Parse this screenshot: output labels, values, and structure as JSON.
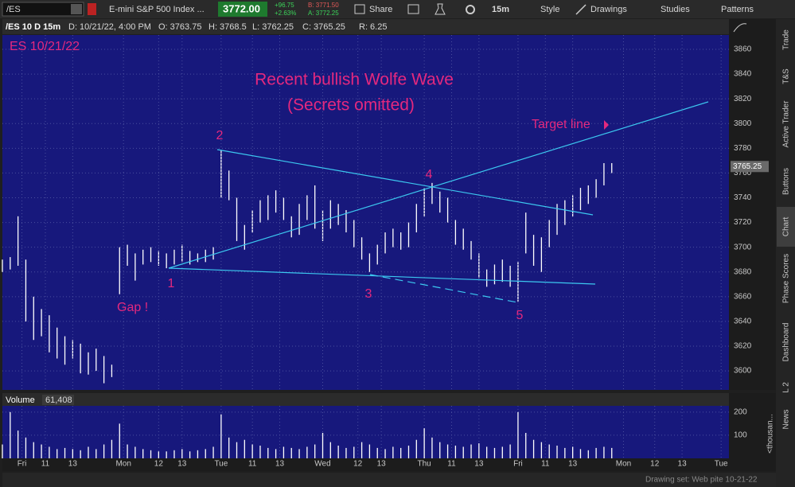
{
  "toolbar": {
    "symbol": "/ES",
    "description": "E-mini S&P 500 Index ...",
    "last": "3772.00",
    "change": "+96.75",
    "change_pct": "+2.63%",
    "bid": "B: 3771.50",
    "ask": "A: 3772.25",
    "share": "Share",
    "interval": "15m",
    "style": "Style",
    "drawings": "Drawings",
    "studies": "Studies",
    "patterns": "Patterns"
  },
  "info_bar": {
    "label": "/ES 10 D 15m",
    "date": "D: 10/21/22, 4:00 PM",
    "open": "O: 3763.75",
    "high": "H: 3768.5",
    "low": "L: 3762.25",
    "close": "C: 3765.25",
    "range": "R: 6.25"
  },
  "sidebar": {
    "tabs": [
      "Trade",
      "T&S",
      "Active Trader",
      "Buttons",
      "Chart",
      "Phase Scores",
      "Dashboard",
      "L 2",
      "News"
    ]
  },
  "status": {
    "drawing_set": "Drawing set: Web pite 10-21-22"
  },
  "chart_data": [
    {
      "type": "ohlc",
      "title": "Recent bullish Wolfe Wave",
      "subtitle": "(Secrets omitted)",
      "symbol_label": "ES 10/21/22",
      "color": "#ffffff",
      "annotations": {
        "gap": "Gap !",
        "p1": "1",
        "p2": "2",
        "p3": "3",
        "p4": "4",
        "p5": "5",
        "target": "Target line"
      },
      "x": [
        0,
        2,
        4,
        6,
        8,
        10,
        12,
        14,
        16,
        18,
        20,
        22,
        24,
        26,
        28,
        30,
        32,
        34,
        36,
        38,
        40,
        42,
        44,
        46,
        48,
        50,
        52,
        54,
        56,
        58,
        60,
        62,
        64,
        66,
        68,
        70,
        72,
        74,
        76,
        78,
        80,
        82,
        84,
        86,
        88,
        90,
        92,
        94,
        96,
        98,
        100,
        102,
        104,
        106,
        108,
        110,
        112,
        114,
        116,
        118,
        120,
        122,
        124,
        126,
        128,
        130,
        132,
        134,
        136,
        138,
        140,
        142,
        144,
        146,
        148,
        150,
        152,
        154,
        156
      ],
      "high": [
        3690,
        3692,
        3725,
        3690,
        3660,
        3650,
        3645,
        3635,
        3628,
        3625,
        3622,
        3615,
        3618,
        3612,
        3605,
        3700,
        3702,
        3695,
        3698,
        3700,
        3697,
        3695,
        3698,
        3702,
        3697,
        3695,
        3698,
        3700,
        3778,
        3762,
        3740,
        3718,
        3730,
        3738,
        3742,
        3746,
        3740,
        3725,
        3735,
        3742,
        3750,
        3730,
        3738,
        3735,
        3730,
        3722,
        3708,
        3695,
        3702,
        3712,
        3715,
        3712,
        3720,
        3735,
        3748,
        3752,
        3745,
        3740,
        3722,
        3715,
        3705,
        3695,
        3682,
        3686,
        3690,
        3685,
        3688,
        3728,
        3710,
        3708,
        3722,
        3735,
        3738,
        3742,
        3748,
        3750,
        3755,
        3768,
        3768
      ],
      "low": [
        3680,
        3682,
        3685,
        3640,
        3625,
        3628,
        3615,
        3610,
        3605,
        3610,
        3598,
        3597,
        3600,
        3590,
        3595,
        3662,
        3685,
        3673,
        3686,
        3688,
        3685,
        3683,
        3686,
        3688,
        3686,
        3688,
        3688,
        3690,
        3740,
        3738,
        3705,
        3698,
        3712,
        3720,
        3722,
        3728,
        3722,
        3708,
        3710,
        3722,
        3715,
        3705,
        3715,
        3718,
        3712,
        3700,
        3690,
        3680,
        3686,
        3695,
        3700,
        3698,
        3700,
        3712,
        3725,
        3735,
        3728,
        3720,
        3702,
        3698,
        3690,
        3675,
        3668,
        3670,
        3672,
        3668,
        3656,
        3695,
        3685,
        3680,
        3700,
        3710,
        3718,
        3725,
        3730,
        3735,
        3740,
        3750,
        3760
      ],
      "last_price": 3765.25,
      "xlim": [
        0,
        186
      ],
      "ylim": [
        3584.6,
        3871.6
      ],
      "yticks": [
        3600,
        3620,
        3640,
        3660,
        3680,
        3700,
        3720,
        3740,
        3760,
        3780,
        3800,
        3820,
        3840,
        3860
      ],
      "grid": true
    },
    {
      "type": "bar",
      "title": "Volume",
      "total_label": "61,408",
      "unit_label": "<thousan...",
      "color": "#ffffff",
      "x": [
        0,
        2,
        4,
        6,
        8,
        10,
        12,
        14,
        16,
        18,
        20,
        22,
        24,
        26,
        28,
        30,
        32,
        34,
        36,
        38,
        40,
        42,
        44,
        46,
        48,
        50,
        52,
        54,
        56,
        58,
        60,
        62,
        64,
        66,
        68,
        70,
        72,
        74,
        76,
        78,
        80,
        82,
        84,
        86,
        88,
        90,
        92,
        94,
        96,
        98,
        100,
        102,
        104,
        106,
        108,
        110,
        112,
        114,
        116,
        118,
        120,
        122,
        124,
        126,
        128,
        130,
        132,
        134,
        136,
        138,
        140,
        142,
        144,
        146,
        148,
        150,
        152,
        154,
        156
      ],
      "values": [
        60,
        200,
        120,
        90,
        70,
        60,
        50,
        40,
        45,
        40,
        35,
        50,
        40,
        60,
        80,
        150,
        60,
        50,
        40,
        35,
        30,
        30,
        35,
        40,
        30,
        35,
        40,
        50,
        190,
        90,
        70,
        80,
        60,
        55,
        45,
        40,
        50,
        45,
        40,
        50,
        60,
        110,
        70,
        55,
        45,
        50,
        70,
        60,
        45,
        40,
        50,
        45,
        55,
        80,
        130,
        90,
        70,
        60,
        55,
        50,
        60,
        65,
        50,
        45,
        50,
        60,
        200,
        110,
        80,
        70,
        60,
        55,
        45,
        50,
        40,
        35,
        45,
        50,
        45
      ],
      "xlim": [
        0,
        186
      ],
      "ylim": [
        0,
        220
      ],
      "yticks": [
        100,
        200
      ],
      "xticks": [
        {
          "value": 5,
          "label": "Fri"
        },
        {
          "value": 11,
          "label": "11"
        },
        {
          "value": 18,
          "label": "13"
        },
        {
          "value": 31,
          "label": "Mon"
        },
        {
          "value": 40,
          "label": "12"
        },
        {
          "value": 46,
          "label": "13"
        },
        {
          "value": 56,
          "label": "Tue"
        },
        {
          "value": 64,
          "label": "11"
        },
        {
          "value": 71,
          "label": "13"
        },
        {
          "value": 82,
          "label": "Wed"
        },
        {
          "value": 91,
          "label": "12"
        },
        {
          "value": 97,
          "label": "13"
        },
        {
          "value": 108,
          "label": "Thu"
        },
        {
          "value": 115,
          "label": "11"
        },
        {
          "value": 122,
          "label": "13"
        },
        {
          "value": 132,
          "label": "Fri"
        },
        {
          "value": 139,
          "label": "11"
        },
        {
          "value": 146,
          "label": "13"
        },
        {
          "value": 159,
          "label": "Mon"
        },
        {
          "value": 167,
          "label": "12"
        },
        {
          "value": 174,
          "label": "13"
        },
        {
          "value": 184,
          "label": "Tue"
        }
      ],
      "grid": true
    }
  ]
}
